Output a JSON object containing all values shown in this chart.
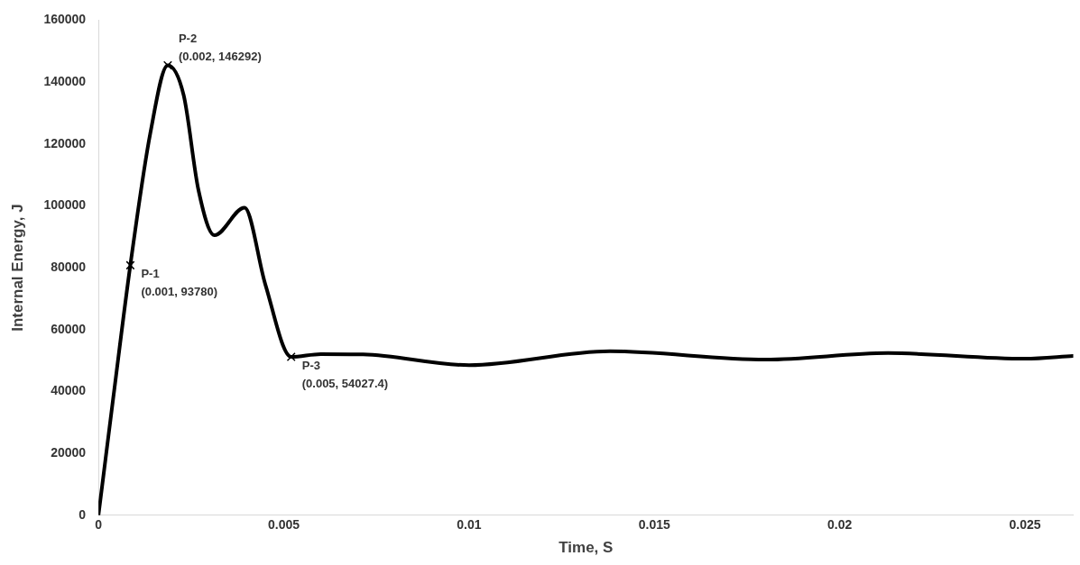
{
  "chart_data": {
    "type": "line",
    "xlabel": "Time, S",
    "ylabel": "Internal Energy, J",
    "xlim": [
      0,
      0.0263
    ],
    "xticks": [
      0,
      0.005,
      0.01,
      0.015,
      0.02,
      0.025
    ],
    "ylim": [
      0,
      160000
    ],
    "yticks": [
      0,
      20000,
      40000,
      60000,
      80000,
      100000,
      120000,
      140000,
      160000
    ],
    "grid": false,
    "legend": false,
    "marker": "none",
    "line_style": "solid",
    "series": [
      {
        "color": "#000000",
        "x": [
          0,
          0.0004,
          0.00086,
          0.0014,
          0.00187,
          0.0023,
          0.0027,
          0.00313,
          0.00394,
          0.0045,
          0.0052,
          0.006,
          0.00714,
          0.01,
          0.0138,
          0.018,
          0.0213,
          0.025,
          0.0263
        ],
        "values": [
          0,
          38000,
          80800,
          123500,
          145400,
          135700,
          105000,
          90500,
          99400,
          74700,
          51200,
          52100,
          52000,
          48500,
          53000,
          50300,
          52400,
          50600,
          51500
        ]
      },
      {
        "type": "scatter",
        "color": "#000000",
        "marker": "cross",
        "x": [
          0.00086,
          0.00187,
          0.0052
        ],
        "values": [
          80800,
          145400,
          51200
        ]
      }
    ],
    "annotations": [
      {
        "text": "P-1\n(0.001, 93780)",
        "x": 0.00086,
        "y": 80800
      },
      {
        "text": "P-2\n(0.002, 146292)",
        "x": 0.00187,
        "y": 145400
      },
      {
        "text": "P-3\n(0.005, 54027.4)",
        "x": 0.0052,
        "y": 51200
      }
    ]
  }
}
